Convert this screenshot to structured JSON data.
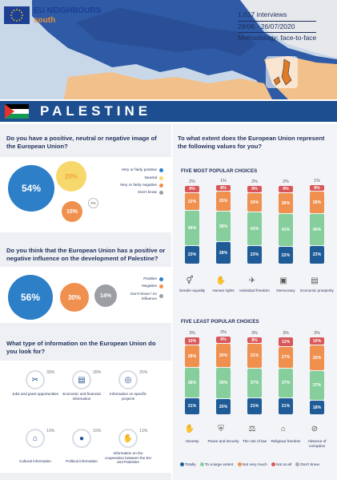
{
  "header": {
    "brand_line1": "EU NEIGHBOURS",
    "brand_line2": "south",
    "interviews": "1,017 interviews",
    "dates": "28/06 - 26/07/2020",
    "methodology": "Methodology: face-to-face"
  },
  "country": "PALESTINE",
  "colors": {
    "totally": "#1f5c97",
    "large": "#86cf9c",
    "not_very": "#f0904f",
    "not_at_all": "#d95659",
    "dont_know": "#a9adb1",
    "positive": "#2d7fc8",
    "neutral": "#f6d86d",
    "negative": "#f0904f",
    "dk": "#9b9ea3",
    "navy": "#1d4e8f"
  },
  "q1": {
    "question": "Do you have a positive, neutral or negative image of the European Union?",
    "values": [
      "54%",
      "29%",
      "15%",
      "2%"
    ],
    "legend": [
      "Very or fairly positive",
      "Neutral",
      "Very or fairly negative",
      "Don't know"
    ]
  },
  "q2": {
    "question": "Do you think that the European Union has a positive or negative influence on the development of Palestine?",
    "values": [
      "56%",
      "30%",
      "14%"
    ],
    "legend": [
      "Positive",
      "Negative",
      "Don't know / no influence"
    ]
  },
  "q3": {
    "question": "What type of information on the European Union do you look for?",
    "items": [
      {
        "label": "Jobs and grant opportunities",
        "pct": "39%",
        "icon": "tools-icon"
      },
      {
        "label": "Economic and financial information",
        "pct": "28%",
        "icon": "money-icon"
      },
      {
        "label": "Information on specific projects",
        "pct": "25%",
        "icon": "target-icon"
      },
      {
        "label": "Cultural information",
        "pct": "19%",
        "icon": "museum-icon"
      },
      {
        "label": "Political information",
        "pct": "15%",
        "icon": "person-icon"
      },
      {
        "label": "Information on the cooperation between the EU and Palestine",
        "pct": "13%",
        "icon": "handshake-icon"
      }
    ]
  },
  "q4": {
    "question": "To what extent does the European Union represent the following values for you?",
    "top_title": "FIVE MOST POPULAR CHOICES",
    "bottom_title": "FIVE LEAST POPULAR CHOICES",
    "legend": [
      "Totally",
      "To a large extent",
      "Not very much",
      "Not at all",
      "Don't know"
    ]
  },
  "chart_data": [
    {
      "type": "bar",
      "title": "FIVE MOST POPULAR CHOICES",
      "categories": [
        "Gender equality",
        "Human rights",
        "Individual freedom",
        "Democracy",
        "Economic prosperity"
      ],
      "series": [
        {
          "name": "Totally",
          "values": [
            23,
            28,
            23,
            22,
            23
          ]
        },
        {
          "name": "To a large extent",
          "values": [
            44,
            38,
            42,
            41,
            40
          ]
        },
        {
          "name": "Not very much",
          "values": [
            22,
            25,
            24,
            26,
            28
          ]
        },
        {
          "name": "Not at all",
          "values": [
            9,
            8,
            9,
            9,
            8
          ]
        },
        {
          "name": "Don't know",
          "values": [
            2,
            1,
            2,
            2,
            1
          ]
        }
      ]
    },
    {
      "type": "bar",
      "title": "FIVE LEAST POPULAR CHOICES",
      "categories": [
        "Honesty",
        "Peace and security",
        "The rule of law",
        "Religious freedom",
        "Absence of corruption"
      ],
      "series": [
        {
          "name": "Totally",
          "values": [
            21,
            20,
            21,
            21,
            18
          ]
        },
        {
          "name": "To a large extent",
          "values": [
            38,
            39,
            37,
            37,
            37
          ]
        },
        {
          "name": "Not very much",
          "values": [
            28,
            30,
            31,
            27,
            32
          ]
        },
        {
          "name": "Not at all",
          "values": [
            10,
            9,
            8,
            12,
            10
          ]
        },
        {
          "name": "Don't know",
          "values": [
            3,
            2,
            3,
            3,
            3
          ]
        }
      ]
    }
  ]
}
